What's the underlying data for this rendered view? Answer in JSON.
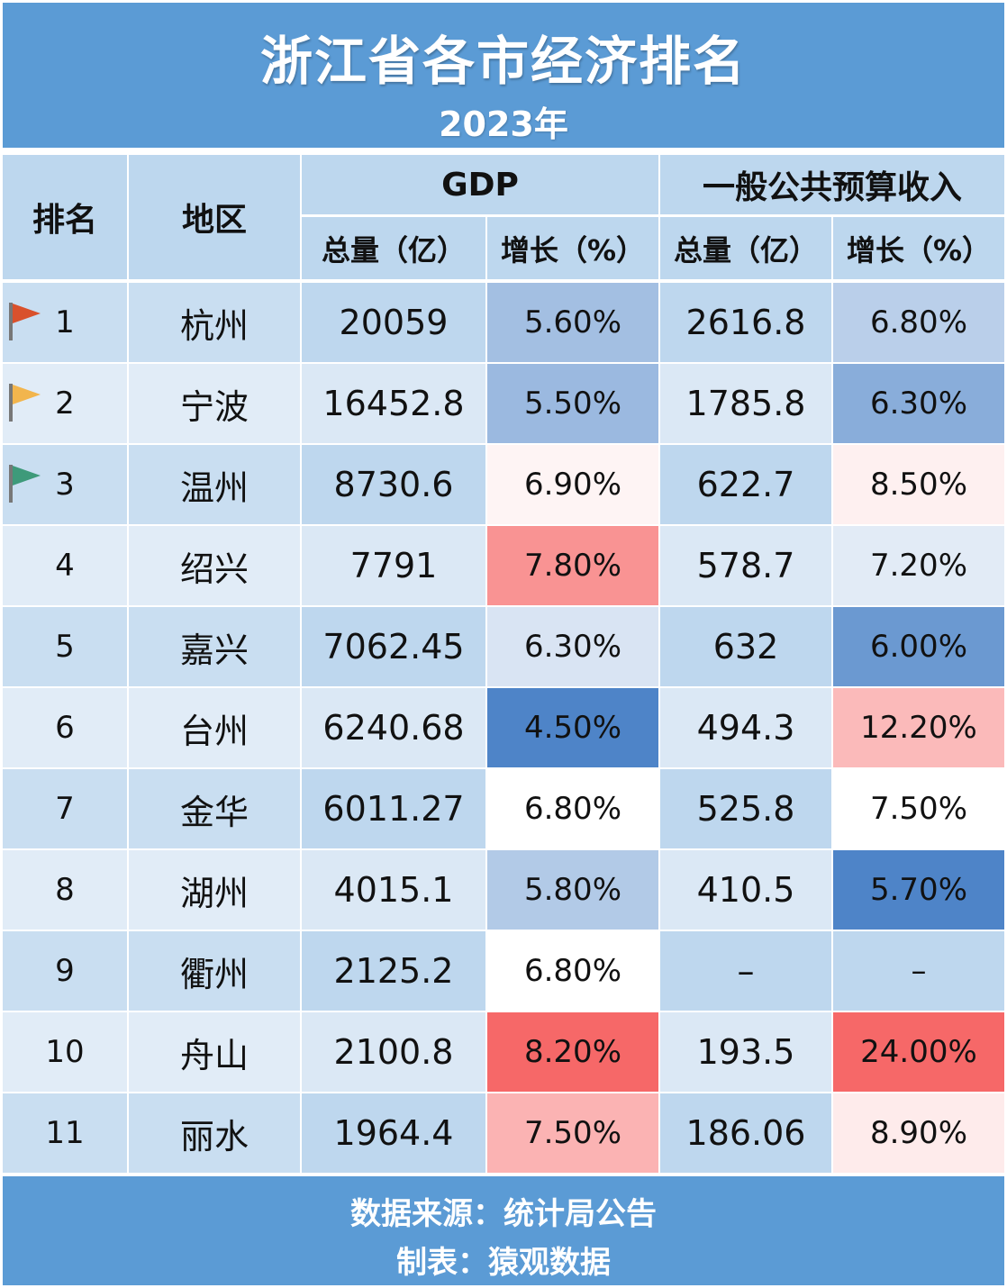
{
  "title": "浙江省各市经济排名",
  "subtitle": "2023年",
  "headers": {
    "rank": "排名",
    "region": "地区",
    "gdp": "GDP",
    "budget": "一般公共预算收入",
    "total": "总量（亿）",
    "growth": "增长（%）"
  },
  "colors": {
    "header_blue": "#5b9bd5",
    "header_cell": "#bdd7ee",
    "gdp_bar": "#f9b82a",
    "budget_bar": "#1a7fd8",
    "flag_1": "#d9512c",
    "flag_2": "#f2b54d",
    "flag_3": "#3e9a7a"
  },
  "chart_data": {
    "type": "table",
    "columns": [
      "排名",
      "地区",
      "GDP 总量（亿）",
      "GDP 增长（%）",
      "一般公共预算收入 总量（亿）",
      "一般公共预算收入 增长（%）"
    ],
    "rows": [
      {
        "rank": "1",
        "city": "杭州",
        "gdp": 20059,
        "gdp_text": "20059",
        "gdp_growth": "5.60%",
        "budget": 2616.8,
        "budget_text": "2616.8",
        "budget_growth": "6.80%",
        "flag": "flag_1"
      },
      {
        "rank": "2",
        "city": "宁波",
        "gdp": 16452.8,
        "gdp_text": "16452.8",
        "gdp_growth": "5.50%",
        "budget": 1785.8,
        "budget_text": "1785.8",
        "budget_growth": "6.30%",
        "flag": "flag_2"
      },
      {
        "rank": "3",
        "city": "温州",
        "gdp": 8730.6,
        "gdp_text": "8730.6",
        "gdp_growth": "6.90%",
        "budget": 622.7,
        "budget_text": "622.7",
        "budget_growth": "8.50%",
        "flag": "flag_3"
      },
      {
        "rank": "4",
        "city": "绍兴",
        "gdp": 7791,
        "gdp_text": "7791",
        "gdp_growth": "7.80%",
        "budget": 578.7,
        "budget_text": "578.7",
        "budget_growth": "7.20%"
      },
      {
        "rank": "5",
        "city": "嘉兴",
        "gdp": 7062.45,
        "gdp_text": "7062.45",
        "gdp_growth": "6.30%",
        "budget": 632,
        "budget_text": "632",
        "budget_growth": "6.00%"
      },
      {
        "rank": "6",
        "city": "台州",
        "gdp": 6240.68,
        "gdp_text": "6240.68",
        "gdp_growth": "4.50%",
        "budget": 494.3,
        "budget_text": "494.3",
        "budget_growth": "12.20%"
      },
      {
        "rank": "7",
        "city": "金华",
        "gdp": 6011.27,
        "gdp_text": "6011.27",
        "gdp_growth": "6.80%",
        "budget": 525.8,
        "budget_text": "525.8",
        "budget_growth": "7.50%"
      },
      {
        "rank": "8",
        "city": "湖州",
        "gdp": 4015.1,
        "gdp_text": "4015.1",
        "gdp_growth": "5.80%",
        "budget": 410.5,
        "budget_text": "410.5",
        "budget_growth": "5.70%"
      },
      {
        "rank": "9",
        "city": "衢州",
        "gdp": 2125.2,
        "gdp_text": "2125.2",
        "gdp_growth": "6.80%",
        "budget": null,
        "budget_text": "–",
        "budget_growth": "–"
      },
      {
        "rank": "10",
        "city": "舟山",
        "gdp": 2100.8,
        "gdp_text": "2100.8",
        "gdp_growth": "8.20%",
        "budget": 193.5,
        "budget_text": "193.5",
        "budget_growth": "24.00%"
      },
      {
        "rank": "11",
        "city": "丽水",
        "gdp": 1964.4,
        "gdp_text": "1964.4",
        "gdp_growth": "7.50%",
        "budget": 186.06,
        "budget_text": "186.06",
        "budget_growth": "8.90%"
      }
    ]
  },
  "footer": {
    "source": "数据来源：统计局公告",
    "maker": "制表：猿观数据"
  }
}
